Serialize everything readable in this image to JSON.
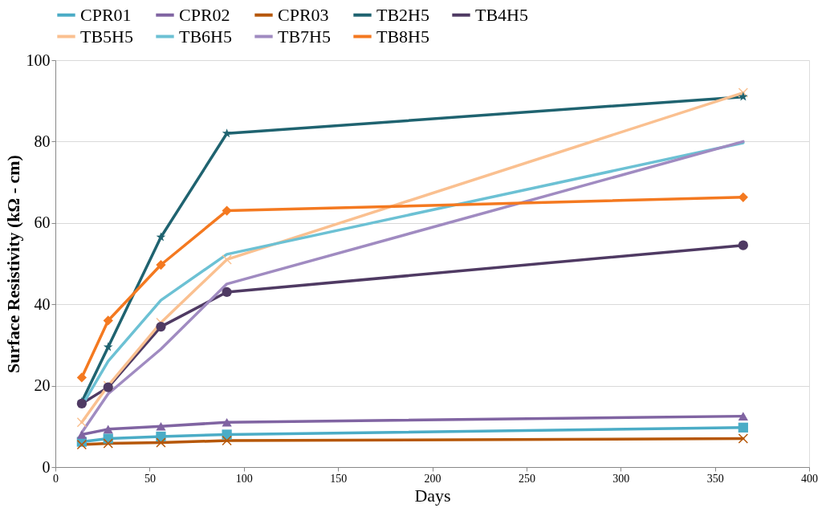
{
  "chart_data": {
    "type": "line",
    "xlabel": "Days",
    "ylabel": "Surface Resistivity (kΩ - cm)",
    "x": [
      14,
      28,
      56,
      91,
      365
    ],
    "xlim": [
      0,
      400
    ],
    "xticks": [
      0,
      50,
      100,
      150,
      200,
      250,
      300,
      350,
      400
    ],
    "ylim": [
      0,
      100
    ],
    "yticks": [
      0,
      20,
      40,
      60,
      80,
      100
    ],
    "grid": "y",
    "legend": "top",
    "series": [
      {
        "name": "CPR01",
        "color": "#4bacc6",
        "marker": "square",
        "values": [
          6.2,
          7,
          7.5,
          8,
          9.7
        ]
      },
      {
        "name": "CPR02",
        "color": "#8064a2",
        "marker": "triangle",
        "values": [
          8,
          9.3,
          10,
          11,
          12.5
        ]
      },
      {
        "name": "CPR03",
        "color": "#b65708",
        "marker": "cross",
        "values": [
          5.5,
          5.8,
          6,
          6.5,
          7
        ]
      },
      {
        "name": "TB2H5",
        "color": "#1f6370",
        "marker": "star",
        "values": [
          16,
          29.5,
          56.5,
          82,
          91
        ]
      },
      {
        "name": "TB4H5",
        "color": "#4f3a63",
        "marker": "circle",
        "values": [
          15.6,
          19.6,
          34.5,
          43,
          54.5
        ]
      },
      {
        "name": "TB5H5",
        "color": "#fac090",
        "marker": "cross",
        "values": [
          11,
          20,
          35.5,
          51,
          92
        ]
      },
      {
        "name": "TB6H5",
        "color": "#6cc1d4",
        "marker": "none",
        "values": [
          15,
          26,
          41,
          52.3,
          79.7
        ]
      },
      {
        "name": "TB7H5",
        "color": "#a08bc1",
        "marker": "none",
        "values": [
          8.5,
          18,
          29,
          45,
          80
        ]
      },
      {
        "name": "TB8H5",
        "color": "#f47920",
        "marker": "diamond",
        "values": [
          22,
          36,
          49.7,
          63,
          66.3
        ]
      }
    ]
  }
}
